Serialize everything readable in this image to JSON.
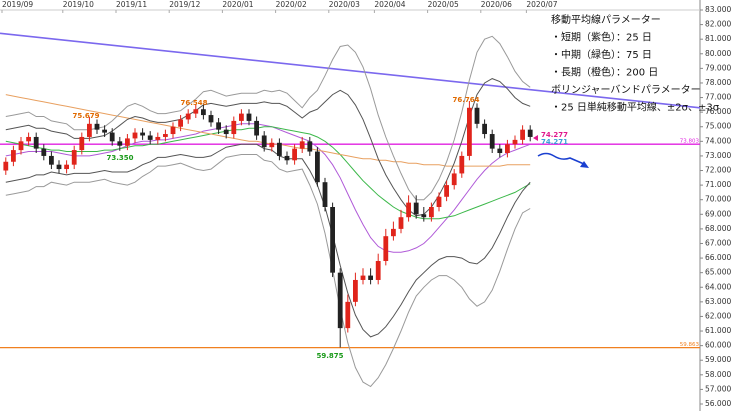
{
  "chart_data": {
    "type": "candlestick",
    "categories": [
      "2019/09",
      null,
      null,
      null,
      null,
      null,
      null,
      null,
      "2019/10",
      null,
      null,
      null,
      null,
      null,
      null,
      "2019/11",
      null,
      null,
      null,
      null,
      null,
      null,
      "2019/12",
      null,
      null,
      null,
      null,
      null,
      null,
      "2020/01",
      null,
      null,
      null,
      null,
      null,
      null,
      "2020/02",
      null,
      null,
      null,
      null,
      null,
      null,
      "2020/03",
      null,
      null,
      null,
      null,
      null,
      "2020/04",
      null,
      null,
      null,
      null,
      null,
      null,
      "2020/05",
      null,
      null,
      null,
      null,
      null,
      null,
      "2020/06",
      null,
      null,
      null,
      null,
      null,
      "2020/07"
    ],
    "open": [
      72.0,
      72.6,
      73.4,
      74.0,
      74.3,
      73.5,
      73.0,
      72.4,
      72.1,
      72.4,
      73.4,
      74.3,
      75.2,
      74.8,
      74.6,
      74.0,
      73.7,
      74.2,
      74.6,
      74.4,
      74.1,
      74.3,
      74.5,
      75.0,
      75.5,
      75.9,
      76.2,
      75.8,
      75.3,
      74.8,
      74.5,
      75.4,
      75.9,
      75.4,
      74.4,
      73.6,
      73.9,
      73.0,
      72.7,
      73.5,
      74.0,
      73.3,
      71.2,
      69.5,
      65.0,
      61.2,
      63.0,
      64.5,
      64.8,
      64.5,
      65.8,
      67.5,
      68.0,
      68.8,
      69.8,
      69.0,
      68.8,
      69.5,
      70.2,
      71.0,
      71.8,
      73.0,
      76.3,
      75.2,
      74.5,
      73.5,
      73.2,
      73.8,
      74.1,
      74.8
    ],
    "high": [
      72.9,
      73.7,
      74.3,
      74.6,
      74.6,
      73.8,
      73.3,
      72.7,
      72.7,
      73.7,
      74.6,
      75.679,
      75.5,
      75.1,
      74.9,
      74.3,
      74.5,
      74.9,
      74.9,
      74.7,
      74.6,
      74.8,
      75.3,
      75.8,
      76.2,
      76.548,
      76.5,
      76.1,
      75.6,
      75.1,
      75.7,
      76.2,
      76.2,
      75.7,
      74.7,
      74.2,
      74.2,
      73.3,
      73.8,
      74.3,
      74.3,
      73.6,
      71.5,
      69.8,
      65.3,
      63.5,
      65.0,
      65.3,
      65.3,
      66.3,
      68.0,
      68.5,
      69.3,
      70.3,
      70.3,
      69.5,
      69.8,
      70.5,
      71.3,
      72.1,
      73.3,
      76.764,
      76.6,
      75.5,
      74.8,
      73.8,
      74.1,
      74.4,
      75.1,
      75.1
    ],
    "low": [
      71.7,
      72.3,
      73.1,
      73.7,
      73.2,
      72.7,
      72.1,
      71.8,
      71.8,
      72.1,
      73.1,
      74.0,
      74.5,
      74.3,
      73.7,
      73.35,
      73.4,
      73.9,
      74.1,
      73.8,
      73.8,
      74.0,
      74.2,
      74.7,
      75.2,
      75.6,
      75.5,
      75.0,
      74.5,
      74.2,
      74.2,
      75.1,
      75.1,
      74.1,
      73.3,
      73.3,
      72.7,
      72.4,
      72.4,
      73.2,
      73.0,
      70.9,
      69.2,
      64.7,
      59.875,
      60.9,
      62.7,
      64.2,
      64.2,
      64.2,
      65.5,
      67.2,
      67.7,
      68.5,
      68.7,
      68.5,
      68.5,
      69.2,
      69.9,
      70.7,
      71.5,
      72.7,
      74.9,
      74.2,
      73.2,
      72.9,
      72.9,
      73.5,
      73.8,
      74.0
    ],
    "close": [
      72.6,
      73.4,
      74.0,
      74.3,
      73.5,
      73.0,
      72.4,
      72.1,
      72.4,
      73.4,
      74.3,
      75.2,
      74.8,
      74.6,
      74.0,
      73.7,
      74.2,
      74.6,
      74.4,
      74.1,
      74.3,
      74.5,
      75.0,
      75.5,
      75.9,
      76.2,
      75.8,
      75.3,
      74.8,
      74.5,
      75.4,
      75.9,
      75.4,
      74.4,
      73.6,
      73.9,
      73.0,
      72.7,
      73.5,
      74.0,
      73.3,
      71.2,
      69.5,
      65.0,
      61.2,
      63.0,
      64.5,
      64.8,
      64.5,
      65.8,
      67.5,
      68.0,
      68.8,
      69.8,
      69.0,
      68.8,
      69.5,
      70.2,
      71.0,
      71.8,
      73.0,
      76.3,
      75.2,
      74.5,
      73.5,
      73.2,
      73.8,
      74.1,
      74.8,
      74.3
    ],
    "up_color": "#e0241b",
    "down_color": "#222222",
    "series": [
      {
        "color": "#b05ad8",
        "values": [
          73.0,
          73.1,
          73.2,
          73.3,
          73.3,
          73.3,
          73.3,
          73.2,
          73.1,
          73.0,
          73.0,
          73.0,
          73.1,
          73.2,
          73.3,
          73.5,
          73.7,
          73.9,
          74.0,
          74.0,
          74.1,
          74.1,
          74.2,
          74.3,
          74.4,
          74.5,
          74.7,
          74.8,
          74.9,
          75.0,
          75.1,
          75.2,
          75.2,
          75.2,
          75.1,
          75.0,
          74.8,
          74.6,
          74.4,
          74.2,
          74.0,
          73.6,
          73.1,
          72.4,
          71.5,
          70.4,
          69.3,
          68.3,
          67.4,
          66.8,
          66.5,
          66.4,
          66.4,
          66.5,
          66.7,
          67.0,
          67.5,
          68.1,
          68.7,
          69.3,
          70.0,
          70.7,
          71.4,
          72.0,
          72.5,
          72.9,
          73.2,
          73.4,
          73.6,
          73.8
        ]
      },
      {
        "color": "#3cb84a",
        "values": [
          74.0,
          73.9,
          73.8,
          73.7,
          73.6,
          73.5,
          73.4,
          73.4,
          73.3,
          73.3,
          73.3,
          73.3,
          73.3,
          73.4,
          73.4,
          73.5,
          73.6,
          73.7,
          73.7,
          73.8,
          73.8,
          73.9,
          74.0,
          74.1,
          74.2,
          74.3,
          74.4,
          74.5,
          74.6,
          74.7,
          74.8,
          74.8,
          74.9,
          74.9,
          75.0,
          75.0,
          74.9,
          74.8,
          74.7,
          74.6,
          74.5,
          74.3,
          74.0,
          73.6,
          73.1,
          72.5,
          71.9,
          71.3,
          70.8,
          70.3,
          69.9,
          69.5,
          69.2,
          69.0,
          68.8,
          68.7,
          68.7,
          68.7,
          68.8,
          68.9,
          69.1,
          69.3,
          69.5,
          69.7,
          69.9,
          70.1,
          70.3,
          70.5,
          70.8,
          71.1
        ]
      },
      {
        "color": "#e8a060",
        "values": [
          77.2,
          77.1,
          77.0,
          76.9,
          76.8,
          76.7,
          76.6,
          76.5,
          76.4,
          76.3,
          76.2,
          76.1,
          76.0,
          75.9,
          75.8,
          75.7,
          75.6,
          75.5,
          75.4,
          75.3,
          75.2,
          75.1,
          75.0,
          74.9,
          74.8,
          74.7,
          74.6,
          74.5,
          74.4,
          74.3,
          74.2,
          74.1,
          74.0,
          74.0,
          73.9,
          73.8,
          73.8,
          73.7,
          73.6,
          73.5,
          73.5,
          73.4,
          73.3,
          73.2,
          73.1,
          73.0,
          72.9,
          72.8,
          72.8,
          72.7,
          72.7,
          72.6,
          72.6,
          72.5,
          72.5,
          72.4,
          72.4,
          72.4,
          72.3,
          72.3,
          72.3,
          72.3,
          72.3,
          72.3,
          72.3,
          72.3,
          72.4,
          72.4,
          72.4,
          72.4
        ]
      },
      {
        "color": "#555555",
        "values": [
          74.8,
          74.9,
          75.0,
          75.1,
          74.9,
          74.9,
          74.7,
          74.6,
          74.5,
          74.2,
          74.2,
          74.2,
          74.3,
          74.4,
          74.7,
          75.1,
          75.5,
          75.7,
          75.6,
          75.4,
          75.3,
          75.3,
          75.4,
          75.5,
          75.8,
          76.1,
          76.5,
          76.6,
          76.5,
          76.4,
          76.5,
          76.6,
          76.6,
          76.6,
          76.7,
          76.6,
          76.6,
          76.4,
          76.0,
          75.6,
          76.0,
          76.2,
          76.7,
          77.2,
          77.5,
          77.2,
          76.5,
          75.5,
          74.2,
          72.8,
          71.7,
          70.8,
          70.0,
          69.3,
          68.9,
          69.0,
          69.5,
          70.3,
          71.3,
          72.5,
          74.0,
          75.7,
          77.2,
          78.0,
          78.3,
          78.1,
          77.6,
          77.0,
          76.6,
          76.4
        ]
      },
      {
        "color": "#555555",
        "values": [
          71.2,
          71.3,
          71.4,
          71.5,
          71.7,
          71.7,
          71.9,
          71.8,
          71.7,
          71.8,
          71.8,
          71.8,
          71.9,
          72.0,
          71.9,
          71.9,
          71.9,
          72.1,
          72.4,
          72.6,
          72.9,
          72.9,
          73.0,
          73.1,
          73.0,
          72.9,
          72.9,
          73.0,
          73.3,
          73.6,
          73.7,
          73.8,
          73.8,
          73.8,
          73.5,
          73.4,
          73.0,
          72.8,
          72.8,
          72.8,
          72.0,
          71.0,
          69.5,
          67.6,
          65.5,
          63.6,
          62.1,
          61.1,
          60.6,
          60.8,
          61.3,
          62.0,
          62.8,
          63.7,
          64.5,
          65.0,
          65.5,
          65.9,
          66.1,
          66.1,
          66.0,
          65.7,
          65.6,
          66.0,
          66.7,
          67.7,
          68.8,
          69.8,
          70.6,
          71.2
        ]
      },
      {
        "color": "#9a9a9a",
        "values": [
          75.7,
          75.8,
          75.9,
          76.0,
          75.7,
          75.7,
          75.4,
          75.3,
          75.2,
          74.8,
          74.8,
          74.8,
          74.9,
          75.0,
          75.4,
          75.9,
          76.4,
          76.6,
          76.4,
          76.1,
          75.9,
          75.9,
          76.0,
          76.1,
          76.5,
          76.9,
          77.4,
          77.5,
          77.3,
          77.1,
          77.2,
          77.3,
          77.3,
          77.3,
          77.5,
          77.4,
          77.5,
          77.3,
          76.8,
          76.3,
          77.0,
          77.5,
          78.5,
          79.6,
          80.5,
          80.6,
          80.1,
          79.1,
          77.6,
          75.8,
          74.3,
          73.0,
          71.8,
          70.7,
          70.0,
          70.0,
          70.5,
          71.4,
          72.6,
          74.1,
          76.0,
          78.2,
          80.1,
          81.0,
          81.2,
          80.7,
          79.8,
          78.8,
          78.1,
          77.7
        ]
      },
      {
        "color": "#9a9a9a",
        "values": [
          70.3,
          70.4,
          70.5,
          70.6,
          70.9,
          70.9,
          71.2,
          71.1,
          71.0,
          71.2,
          71.2,
          71.2,
          71.3,
          71.4,
          71.2,
          71.1,
          71.0,
          71.2,
          71.6,
          71.9,
          72.3,
          72.3,
          72.4,
          72.5,
          72.3,
          72.1,
          72.0,
          72.1,
          72.5,
          72.9,
          73.0,
          73.1,
          73.1,
          73.1,
          72.7,
          72.6,
          72.1,
          71.9,
          72.0,
          72.1,
          71.0,
          69.7,
          67.7,
          65.2,
          62.5,
          60.2,
          58.5,
          57.5,
          57.2,
          57.8,
          58.7,
          59.8,
          61.0,
          62.3,
          63.4,
          64.0,
          64.5,
          64.8,
          64.8,
          64.5,
          64.0,
          63.2,
          62.7,
          63.0,
          63.8,
          65.1,
          66.6,
          68.0,
          69.1,
          69.4
        ]
      }
    ],
    "trendline": {
      "color": "#7b68ee",
      "values": [
        81.4,
        76.3
      ]
    },
    "hlines": [
      {
        "value": 73.803,
        "color": "#e020e0"
      },
      {
        "value": 59.863,
        "color": "#f08020"
      }
    ],
    "annotations": [
      {
        "text": "76.548",
        "color": "#e06a00"
      },
      {
        "text": "75.679",
        "color": "#e06a00"
      },
      {
        "text": "73.350",
        "color": "#1a9a1a"
      },
      {
        "text": "76.764",
        "color": "#e06a00"
      },
      {
        "text": "59.875",
        "color": "#1a9a1a"
      }
    ],
    "price_labels": [
      {
        "text": "74.277",
        "color": "#e0188c"
      },
      {
        "text": "74.271",
        "color": "#3aa0d8"
      }
    ],
    "notes": [
      "移動平均線パラメーター",
      "・短期（紫色）：25 日",
      "・中期（緑色）：75 日",
      "・長期（橙色）：200 日",
      "ボリンジャーバンドパラメーター",
      "・25 日単純移動平均線、±2σ、±3σ"
    ],
    "ylim": [
      56,
      83
    ],
    "yticks": [
      {
        "value": 56,
        "label": "56.000"
      },
      {
        "value": 57,
        "label": "57.000"
      },
      {
        "value": 58,
        "label": "58.000"
      },
      {
        "value": 59,
        "label": "59.000"
      },
      {
        "value": 60,
        "label": "60.000"
      },
      {
        "value": 61,
        "label": "61.000"
      },
      {
        "value": 62,
        "label": "62.000"
      },
      {
        "value": 63,
        "label": "63.000"
      },
      {
        "value": 64,
        "label": "64.000"
      },
      {
        "value": 65,
        "label": "65.000"
      },
      {
        "value": 66,
        "label": "66.000"
      },
      {
        "value": 67,
        "label": "67.000"
      },
      {
        "value": 68,
        "label": "68.000"
      },
      {
        "value": 69,
        "label": "69.000"
      },
      {
        "value": 70,
        "label": "70.000"
      },
      {
        "value": 71,
        "label": "71.000"
      },
      {
        "value": 72,
        "label": "72.000"
      },
      {
        "value": 73,
        "label": "73.000"
      },
      {
        "value": 74,
        "label": "74.000"
      },
      {
        "value": 75,
        "label": "75.000"
      },
      {
        "value": 76,
        "label": "76.000"
      },
      {
        "value": 77,
        "label": "77.000"
      },
      {
        "value": 78,
        "label": "78.000"
      },
      {
        "value": 79,
        "label": "79.000"
      },
      {
        "value": 80,
        "label": "80.000"
      },
      {
        "value": 81,
        "label": "81.000"
      },
      {
        "value": 82,
        "label": "82.000"
      },
      {
        "value": 83,
        "label": "83.000"
      }
    ]
  }
}
